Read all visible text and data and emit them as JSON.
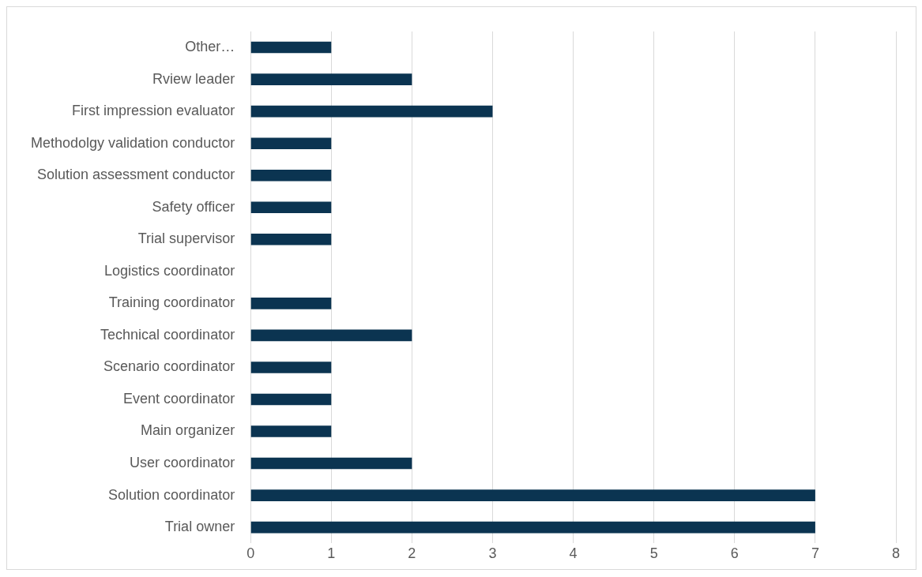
{
  "chart_data": {
    "type": "bar",
    "orientation": "horizontal",
    "categories": [
      "Other…",
      "Rview leader",
      "First impression evaluator",
      "Methodolgy validation conductor",
      "Solution assessment conductor",
      "Safety officer",
      "Trial supervisor",
      "Logistics coordinator",
      "Training coordinator",
      "Technical coordinator",
      "Scenario coordinator",
      "Event coordinator",
      "Main organizer",
      "User coordinator",
      "Solution coordinator",
      "Trial owner"
    ],
    "values": [
      1,
      2,
      3,
      1,
      1,
      1,
      1,
      0,
      1,
      2,
      1,
      1,
      1,
      2,
      7,
      7
    ],
    "color": "#0b3451",
    "xlim": [
      0,
      8
    ],
    "xticks": [
      0,
      1,
      2,
      3,
      4,
      5,
      6,
      7,
      8
    ],
    "grid": "x",
    "legend": false
  }
}
